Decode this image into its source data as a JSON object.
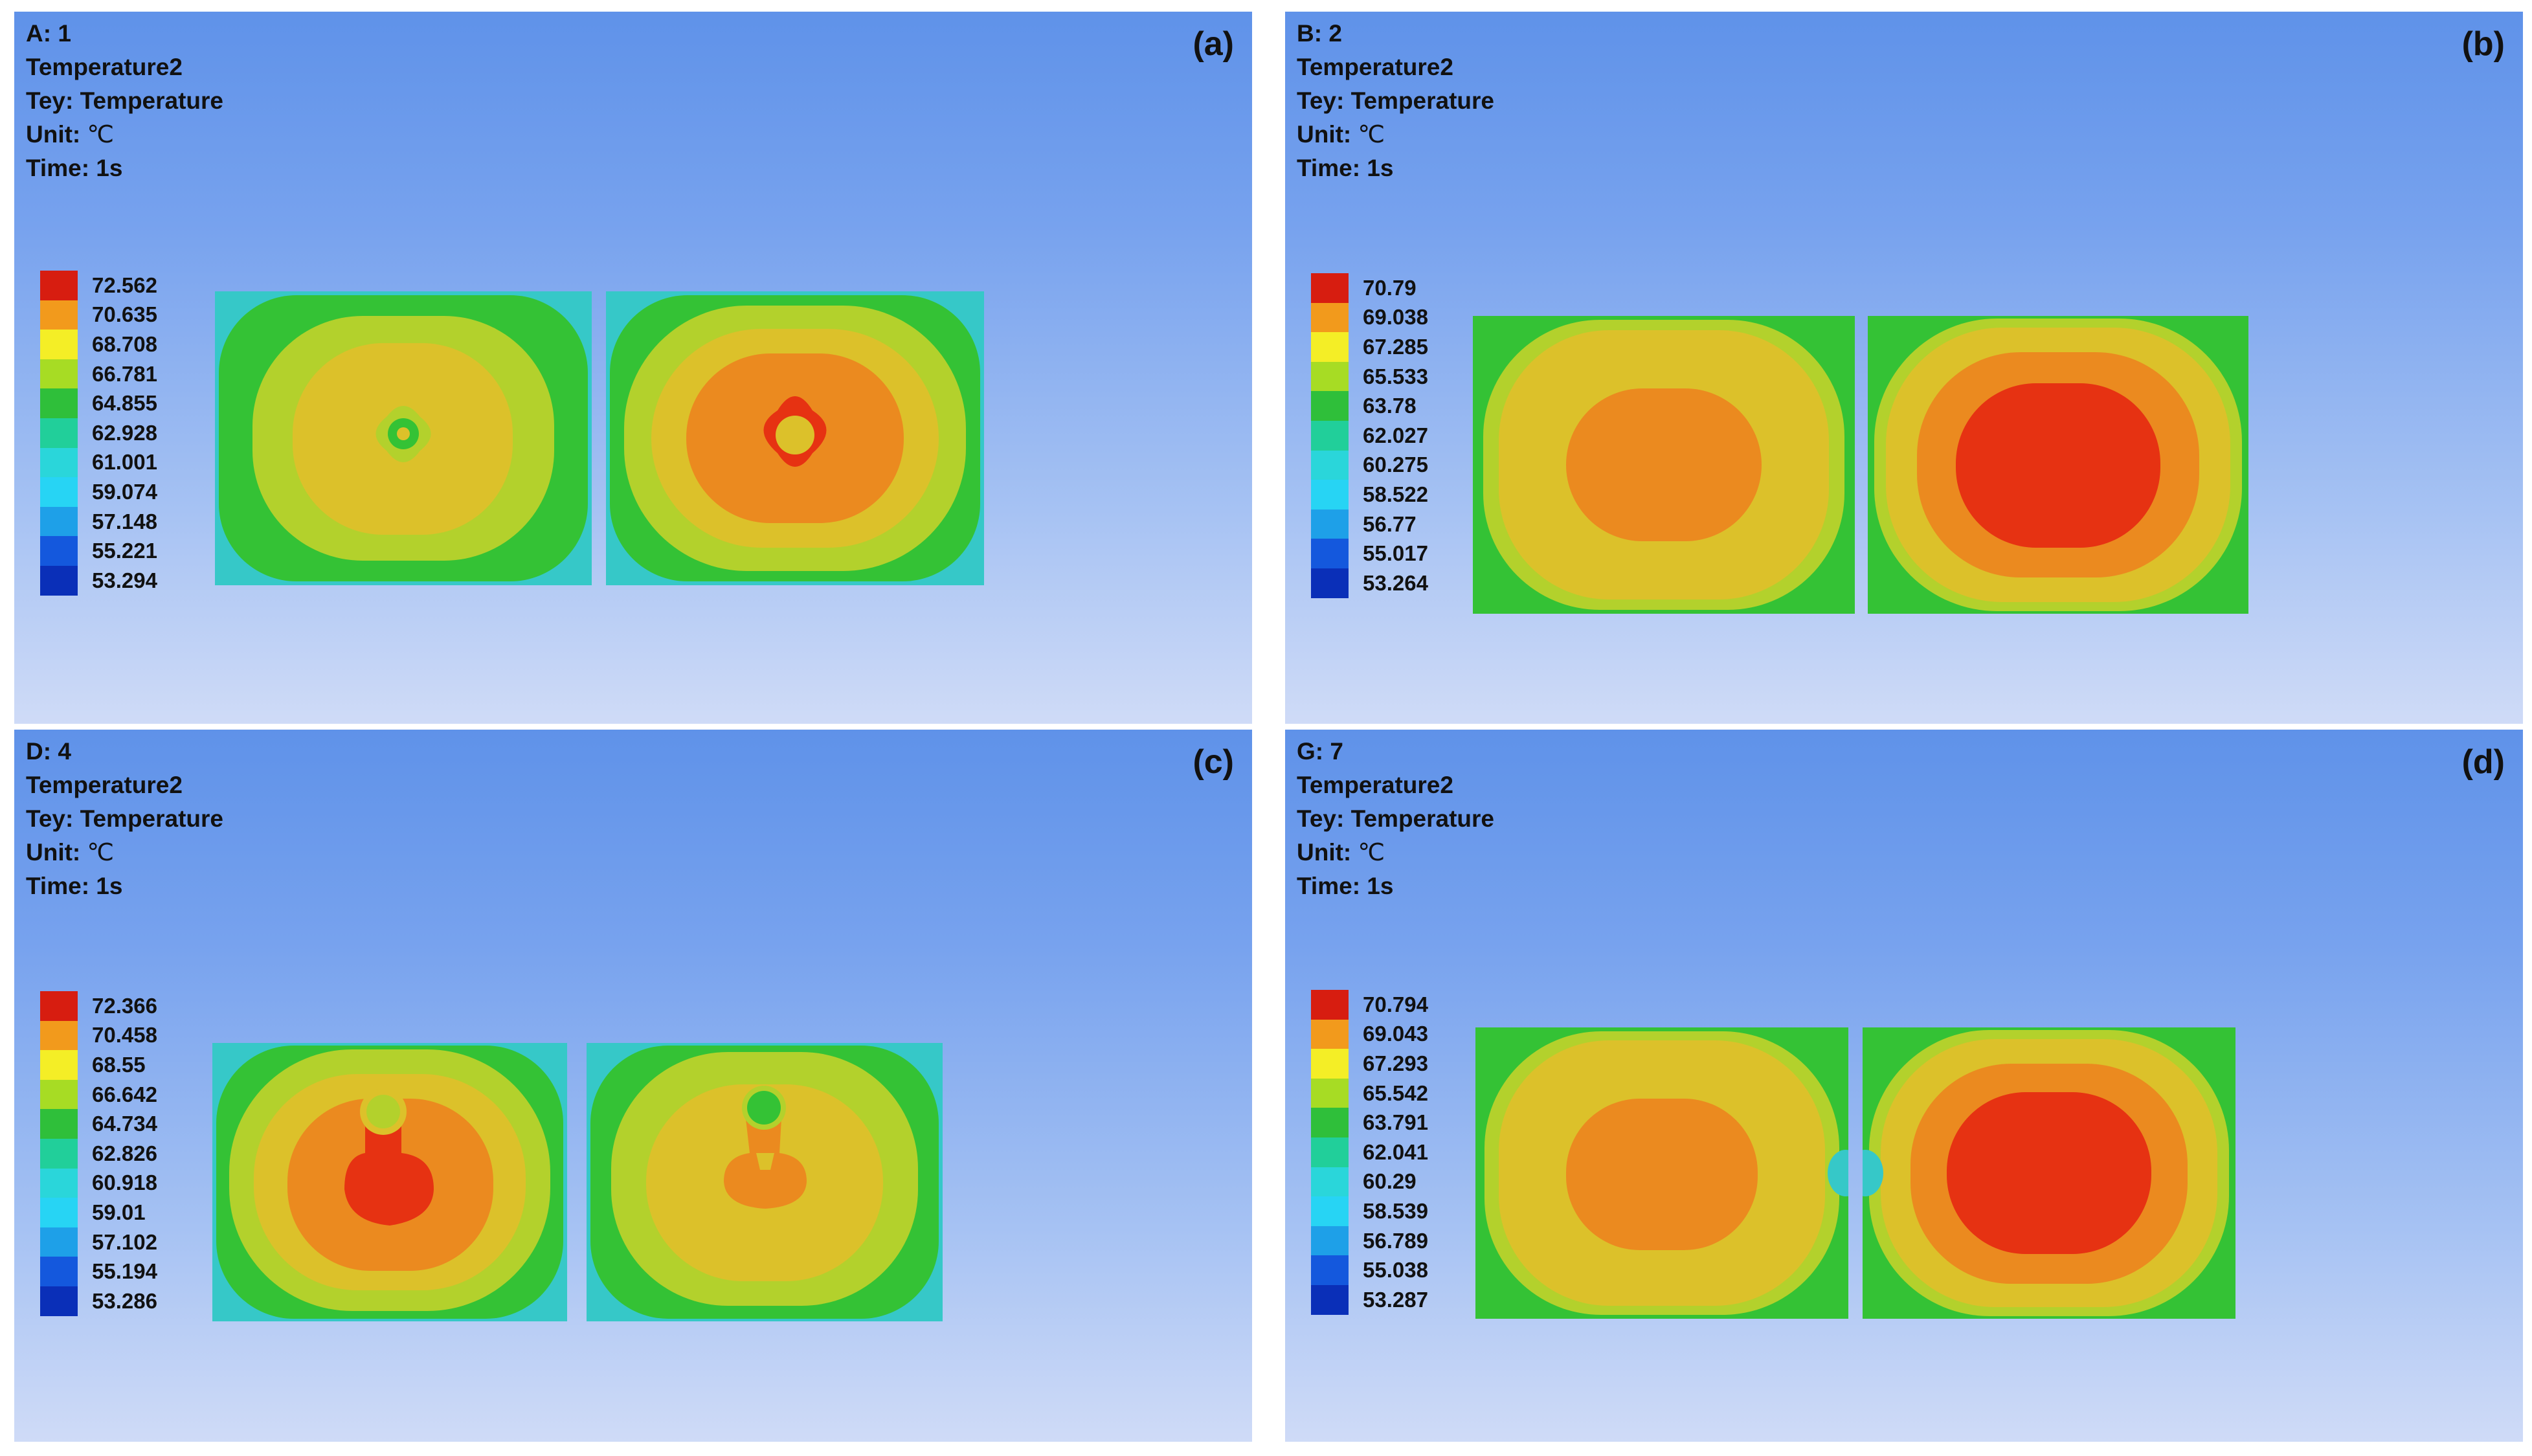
{
  "colors": {
    "scale": [
      "#d71d10",
      "#f29a1c",
      "#f4ee26",
      "#a7dc24",
      "#2fbf3a",
      "#21cf9a",
      "#2ad6da",
      "#27d4f4",
      "#1ea0e8",
      "#1458dd",
      "#0a2fb8"
    ],
    "contours": {
      "red": "#e63212",
      "orange": "#eb8a1f",
      "yellow_orange": "#dcc12a",
      "yellow_green": "#b3d12c",
      "green": "#34c235",
      "teal": "#2cc08a",
      "cyan": "#36c8c8"
    }
  },
  "legend_label_sizes": {
    "unit_label": "℃"
  },
  "panels": [
    {
      "id": "a",
      "tag": "(a)",
      "header": "A: 1",
      "title": "Temperature2",
      "type_label": "Tey:",
      "type_value": "Temperature",
      "unit_label": "Unit:",
      "unit_value": "℃",
      "time_label": "Time:",
      "time_value": "1s",
      "legend": [
        "72.562",
        "70.635",
        "68.708",
        "66.781",
        "64.855",
        "62.928",
        "61.001",
        "59.074",
        "57.148",
        "55.221",
        "53.294"
      ]
    },
    {
      "id": "b",
      "tag": "(b)",
      "header": "B: 2",
      "title": "Temperature2",
      "type_label": "Tey:",
      "type_value": "Temperature",
      "unit_label": "Unit:",
      "unit_value": "℃",
      "time_label": "Time:",
      "time_value": "1s",
      "legend": [
        "70.79",
        "69.038",
        "67.285",
        "65.533",
        "63.78",
        "62.027",
        "60.275",
        "58.522",
        "56.77",
        "55.017",
        "53.264"
      ]
    },
    {
      "id": "c",
      "tag": "(c)",
      "header": "D: 4",
      "title": "Temperature2",
      "type_label": "Tey:",
      "type_value": "Temperature",
      "unit_label": "Unit:",
      "unit_value": "℃",
      "time_label": "Time:",
      "time_value": "1s",
      "legend": [
        "72.366",
        "70.458",
        "68.55",
        "66.642",
        "64.734",
        "62.826",
        "60.918",
        "59.01",
        "57.102",
        "55.194",
        "53.286"
      ]
    },
    {
      "id": "d",
      "tag": "(d)",
      "header": "G: 7",
      "title": "Temperature2",
      "type_label": "Tey:",
      "type_value": "Temperature",
      "unit_label": "Unit:",
      "unit_value": "℃",
      "time_label": "Time:",
      "time_value": "1s",
      "legend": [
        "70.794",
        "69.043",
        "67.293",
        "65.542",
        "63.791",
        "62.041",
        "60.29",
        "58.539",
        "56.789",
        "55.038",
        "53.287"
      ]
    }
  ]
}
